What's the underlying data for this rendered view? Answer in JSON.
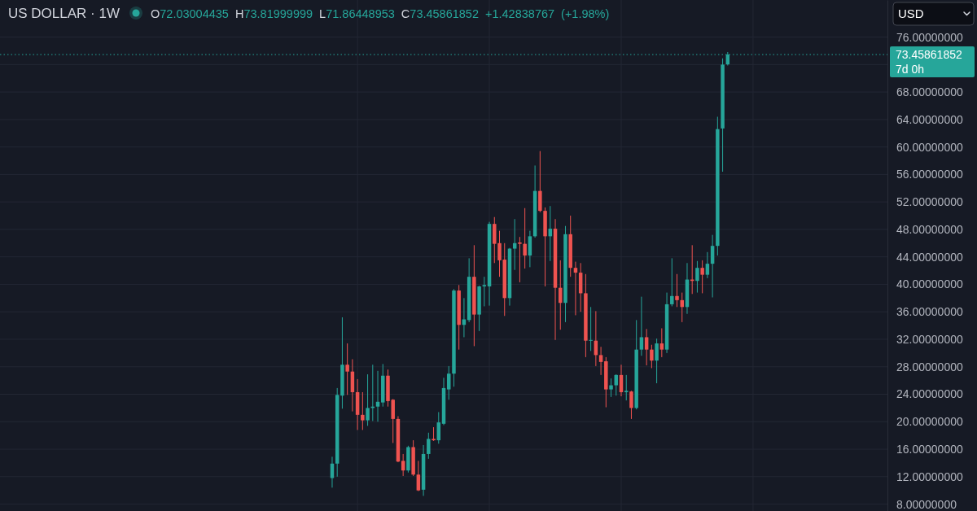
{
  "chart_data": {
    "type": "candlestick",
    "title": "US DOLLAR · 1W",
    "subtitle": "O72.03004435 H73.81999999 L71.86448953 C73.45861852 +1.42838767 (+1.98%)",
    "annotations": [
      "USD"
    ],
    "categories": [
      null,
      null,
      null,
      null,
      null,
      null,
      null,
      null,
      null,
      null,
      null,
      null,
      null,
      null,
      null,
      null,
      null,
      null,
      null,
      null,
      null,
      null,
      null,
      null,
      null,
      null,
      null,
      null,
      null,
      null,
      null,
      null,
      null,
      null,
      null,
      null,
      null,
      null,
      null,
      null,
      null,
      null,
      null,
      null,
      null,
      null,
      null,
      null,
      null,
      null,
      null,
      null,
      null,
      null,
      null,
      null,
      null,
      null,
      null,
      null,
      null,
      null,
      null,
      null,
      null,
      null,
      null,
      null,
      null,
      null,
      null,
      null,
      null,
      null,
      null,
      null,
      null,
      null,
      null,
      null,
      null,
      null,
      null,
      null,
      null,
      null,
      null,
      null,
      null,
      null,
      null,
      null,
      null,
      null,
      null,
      null,
      null,
      null,
      null,
      null,
      null,
      null,
      null,
      null,
      null,
      null,
      null,
      null,
      null,
      null,
      null,
      null,
      null,
      null,
      null,
      null,
      null,
      null,
      null,
      null,
      null,
      null,
      null,
      null,
      null,
      null,
      null,
      null,
      null,
      null,
      null,
      null,
      null,
      null,
      null,
      null,
      null,
      null,
      null,
      null,
      null,
      null,
      null,
      null,
      null,
      null,
      null,
      null,
      null,
      null,
      null,
      null,
      null,
      null,
      null,
      null,
      null,
      null,
      null,
      null,
      null,
      null,
      null,
      null,
      null,
      null,
      null,
      null,
      null,
      null,
      null,
      null,
      null,
      null,
      null
    ],
    "ohlc": [
      null,
      null,
      null,
      null,
      null,
      null,
      null,
      null,
      null,
      null,
      null,
      null,
      null,
      null,
      null,
      null,
      null,
      null,
      null,
      null,
      null,
      null,
      null,
      null,
      null,
      null,
      null,
      null,
      null,
      null,
      null,
      null,
      null,
      null,
      null,
      null,
      null,
      null,
      null,
      null,
      null,
      null,
      null,
      null,
      null,
      null,
      null,
      null,
      null,
      null,
      null,
      null,
      null,
      null,
      null,
      null,
      null,
      null,
      null,
      null,
      null,
      null,
      null,
      null,
      null,
      [
        11.8,
        14.9,
        10.4,
        13.9
      ],
      [
        13.9,
        24.9,
        12.0,
        23.9
      ],
      [
        23.8,
        35.2,
        21.9,
        28.3
      ],
      [
        28.3,
        31.4,
        23.9,
        27.3
      ],
      [
        27.3,
        29.1,
        21.5,
        24.3
      ],
      [
        24.3,
        26.2,
        18.8,
        21.0
      ],
      [
        21.0,
        24.3,
        18.8,
        20.2
      ],
      [
        20.2,
        26.9,
        19.4,
        22.0
      ],
      [
        22.0,
        28.3,
        20.1,
        22.2
      ],
      [
        22.2,
        27.4,
        20.0,
        22.9
      ],
      [
        22.8,
        28.4,
        22.2,
        26.7
      ],
      [
        26.7,
        27.6,
        22.2,
        23.0
      ],
      [
        23.2,
        23.3,
        16.9,
        20.4
      ],
      [
        20.4,
        20.8,
        14.1,
        14.2
      ],
      [
        14.3,
        15.3,
        12.1,
        12.9
      ],
      [
        12.9,
        16.5,
        12.6,
        16.3
      ],
      [
        16.3,
        17.3,
        12.1,
        12.3
      ],
      [
        12.3,
        14.3,
        9.9,
        10.0
      ],
      [
        10.1,
        16.6,
        9.2,
        15.3
      ],
      [
        15.3,
        18.4,
        14.6,
        17.5
      ],
      [
        17.5,
        19.2,
        17.2,
        17.3
      ],
      [
        17.3,
        21.4,
        16.8,
        19.9
      ],
      [
        19.7,
        26.4,
        19.5,
        24.9
      ],
      [
        24.7,
        28.1,
        23.2,
        27.0
      ],
      [
        27.0,
        39.3,
        25.1,
        39.1
      ],
      [
        39.1,
        39.9,
        30.5,
        34.1
      ],
      [
        34.1,
        38.0,
        32.3,
        34.9
      ],
      [
        34.8,
        43.8,
        34.5,
        41.1
      ],
      [
        41.1,
        45.7,
        31.0,
        35.6
      ],
      [
        35.6,
        39.8,
        33.2,
        39.7
      ],
      [
        39.7,
        41.1,
        36.8,
        39.9
      ],
      [
        39.7,
        49.1,
        36.9,
        48.8
      ],
      [
        48.8,
        49.8,
        43.1,
        45.9
      ],
      [
        46.0,
        47.8,
        41.1,
        43.5
      ],
      [
        43.6,
        46.0,
        35.4,
        38.0
      ],
      [
        38.0,
        45.3,
        36.9,
        45.2
      ],
      [
        45.2,
        49.5,
        42.1,
        46.0
      ],
      [
        46.1,
        46.9,
        40.3,
        45.9
      ],
      [
        45.9,
        51.1,
        42.3,
        44.2
      ],
      [
        44.2,
        47.8,
        42.5,
        47.0
      ],
      [
        47.0,
        57.3,
        46.8,
        53.6
      ],
      [
        53.6,
        59.4,
        50.5,
        50.7
      ],
      [
        50.7,
        51.2,
        39.7,
        47.0
      ],
      [
        47.0,
        51.4,
        43.4,
        48.1
      ],
      [
        48.1,
        49.5,
        31.9,
        39.5
      ],
      [
        39.5,
        43.5,
        33.4,
        37.3
      ],
      [
        37.3,
        48.5,
        34.5,
        47.3
      ],
      [
        47.3,
        50.0,
        41.1,
        42.4
      ],
      [
        42.4,
        43.3,
        35.5,
        41.7
      ],
      [
        41.7,
        43.1,
        36.0,
        38.7
      ],
      [
        38.7,
        41.5,
        29.4,
        31.8
      ],
      [
        31.8,
        36.7,
        30.3,
        31.9
      ],
      [
        31.8,
        36.1,
        28.1,
        29.7
      ],
      [
        29.7,
        30.9,
        26.8,
        28.7
      ],
      [
        28.8,
        29.4,
        22.1,
        24.7
      ],
      [
        24.7,
        26.3,
        23.6,
        25.3
      ],
      [
        25.3,
        26.9,
        23.8,
        26.8
      ],
      [
        26.8,
        28.3,
        23.7,
        24.3
      ],
      [
        24.3,
        26.8,
        23.1,
        24.5
      ],
      [
        24.4,
        24.5,
        20.4,
        22.0
      ],
      [
        22.0,
        34.8,
        21.8,
        30.5
      ],
      [
        30.5,
        38.2,
        29.6,
        32.3
      ],
      [
        32.3,
        33.5,
        28.2,
        30.5
      ],
      [
        30.5,
        31.2,
        27.8,
        28.9
      ],
      [
        28.9,
        32.1,
        25.6,
        31.4
      ],
      [
        31.4,
        33.6,
        29.4,
        30.5
      ],
      [
        30.5,
        38.8,
        30.0,
        37.1
      ],
      [
        37.1,
        43.8,
        36.8,
        38.3
      ],
      [
        38.3,
        41.5,
        36.7,
        37.7
      ],
      [
        37.7,
        38.8,
        34.5,
        36.7
      ],
      [
        36.7,
        43.1,
        35.7,
        40.7
      ],
      [
        40.7,
        45.7,
        38.6,
        40.5
      ],
      [
        40.5,
        43.4,
        38.8,
        42.4
      ],
      [
        42.4,
        43.5,
        38.7,
        41.4
      ],
      [
        41.4,
        44.7,
        40.9,
        43.0
      ],
      [
        43.0,
        47.2,
        38.1,
        45.6
      ],
      [
        45.6,
        64.4,
        44.2,
        62.6
      ],
      [
        62.7,
        72.9,
        56.4,
        72.0
      ],
      [
        72.03004435,
        73.81999999,
        71.86448953,
        73.45861852
      ],
      null,
      null,
      null,
      null,
      null,
      null,
      null,
      null,
      null,
      null,
      null,
      null,
      null,
      null,
      null,
      null,
      null,
      null,
      null,
      null,
      null,
      null,
      null,
      null,
      null,
      null,
      null,
      null,
      null,
      null,
      null
    ],
    "colors": [
      null,
      null,
      null,
      null,
      null,
      null,
      null,
      null,
      null,
      null,
      null,
      null,
      null,
      null,
      null,
      null,
      null,
      null,
      null,
      null,
      null,
      null,
      null,
      null,
      null,
      null,
      null,
      null,
      null,
      null,
      null,
      null,
      null,
      null,
      null,
      null,
      null,
      null,
      null,
      null,
      null,
      null,
      null,
      null,
      null,
      null,
      null,
      null,
      null,
      null,
      null,
      null,
      null,
      null,
      null,
      null,
      null,
      null,
      null,
      null,
      null,
      null,
      null,
      null,
      null,
      "#26a69a",
      "#26a69a",
      "#26a69a",
      "#ef5350",
      "#ef5350",
      "#ef5350",
      "#ef5350",
      "#26a69a",
      "#26a69a",
      "#26a69a",
      "#26a69a",
      "#ef5350",
      "#ef5350",
      "#ef5350",
      "#ef5350",
      "#26a69a",
      "#ef5350",
      "#ef5350",
      "#26a69a",
      "#26a69a",
      "#ef5350",
      "#26a69a",
      "#26a69a",
      "#26a69a",
      "#26a69a",
      "#ef5350",
      "#26a69a",
      "#26a69a",
      "#ef5350",
      "#26a69a",
      "#26a69a",
      "#26a69a",
      "#ef5350",
      "#ef5350",
      "#ef5350",
      "#26a69a",
      "#26a69a",
      "#ef5350",
      "#ef5350",
      "#26a69a",
      "#26a69a",
      "#ef5350",
      "#ef5350",
      "#26a69a",
      "#ef5350",
      "#ef5350",
      "#26a69a",
      "#ef5350",
      "#ef5350",
      "#ef5350",
      "#ef5350",
      "#26a69a",
      "#ef5350",
      "#ef5350",
      "#ef5350",
      "#26a69a",
      "#26a69a",
      "#ef5350",
      "#26a69a",
      "#ef5350",
      "#26a69a",
      "#26a69a",
      "#ef5350",
      "#ef5350",
      "#26a69a",
      "#ef5350",
      "#26a69a",
      "#26a69a",
      "#ef5350",
      "#ef5350",
      "#26a69a",
      "#ef5350",
      "#26a69a",
      "#ef5350",
      "#26a69a",
      "#26a69a",
      "#26a69a",
      "#26a69a",
      "#26a69a",
      null,
      null,
      null,
      null,
      null,
      null,
      null,
      null,
      null,
      null,
      null,
      null,
      null,
      null,
      null,
      null,
      null,
      null,
      null,
      null,
      null,
      null,
      null,
      null,
      null,
      null,
      null,
      null,
      null,
      null,
      null
    ],
    "ylim": [
      7,
      81.4
    ],
    "yticks": [
      {
        "value": 8,
        "label": "8.00000000"
      },
      {
        "value": 12,
        "label": "12.00000000"
      },
      {
        "value": 16,
        "label": "16.00000000"
      },
      {
        "value": 20,
        "label": "20.00000000"
      },
      {
        "value": 24,
        "label": "24.00000000"
      },
      {
        "value": 28,
        "label": "28.00000000"
      },
      {
        "value": 32,
        "label": "32.00000000"
      },
      {
        "value": 36,
        "label": "36.00000000"
      },
      {
        "value": 40,
        "label": "40.00000000"
      },
      {
        "value": 44,
        "label": "44.00000000"
      },
      {
        "value": 48,
        "label": "48.00000000"
      },
      {
        "value": 52,
        "label": "52.00000000"
      },
      {
        "value": 56,
        "label": "56.00000000"
      },
      {
        "value": 60,
        "label": "60.00000000"
      },
      {
        "value": 64,
        "label": "64.00000000"
      },
      {
        "value": 68,
        "label": "68.00000000"
      },
      {
        "value": 72,
        "label": null
      },
      {
        "value": 76,
        "label": "76.00000000"
      }
    ],
    "ref_lines": [
      {
        "axis": "y",
        "value": 73.45861852,
        "label": "73.45861852\n7d 0h",
        "color": "#26a69a",
        "line_style": "dotted"
      }
    ],
    "grid": true
  }
}
